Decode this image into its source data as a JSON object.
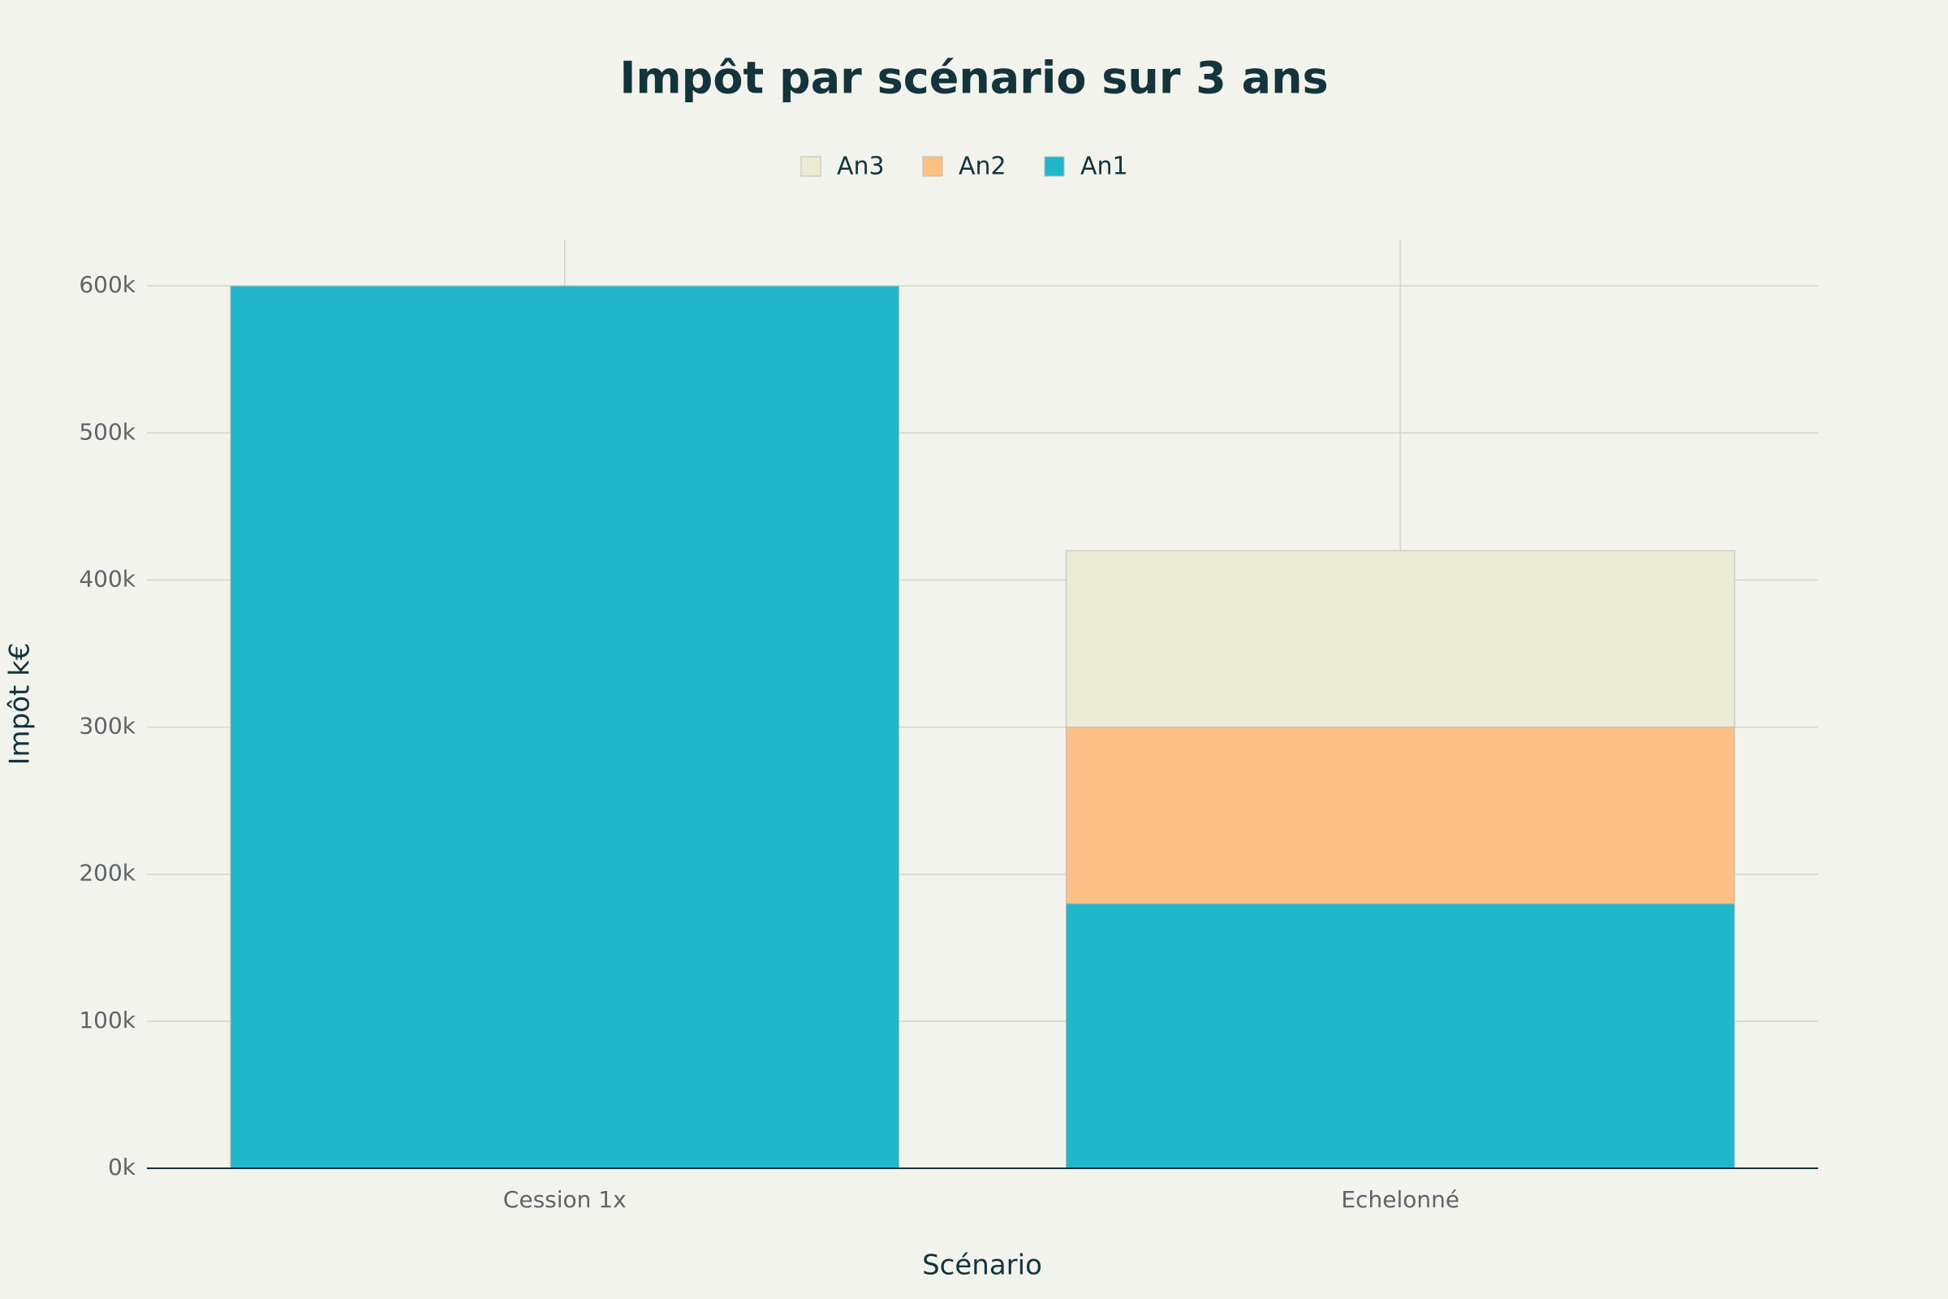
{
  "chart_data": {
    "type": "stacked-bar",
    "title": "Impôt par scénario sur 3 ans",
    "x_label": "Scénario",
    "y_label": "Impôt k€",
    "categories": [
      "Cession 1x",
      "Echelonné"
    ],
    "series": [
      {
        "name": "An1",
        "color": "#21b6cb",
        "values": [
          600000,
          180000
        ]
      },
      {
        "name": "An2",
        "color": "#ffc085",
        "values": [
          0,
          120000
        ]
      },
      {
        "name": "An3",
        "color": "#ecebd6",
        "values": [
          0,
          120000
        ]
      }
    ],
    "ylim": [
      0,
      631000
    ],
    "yticks": [
      {
        "value": 0,
        "label": "0k"
      },
      {
        "value": 100000,
        "label": "100k"
      },
      {
        "value": 200000,
        "label": "200k"
      },
      {
        "value": 300000,
        "label": "300k"
      },
      {
        "value": 400000,
        "label": "400k"
      },
      {
        "value": 500000,
        "label": "500k"
      },
      {
        "value": 600000,
        "label": "600k"
      }
    ],
    "grid": true
  }
}
